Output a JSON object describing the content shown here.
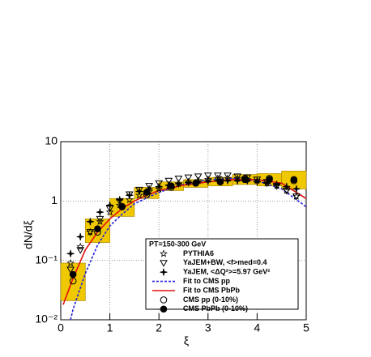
{
  "chart_data": {
    "type": "line",
    "x_label": "ξ",
    "y_label": "dN/dξ",
    "xlim": [
      0,
      5
    ],
    "xticks": [
      0,
      1,
      2,
      3,
      4,
      5
    ],
    "ylim": [
      0.01,
      10
    ],
    "log_y": true,
    "yticks": [
      {
        "value": 0.01,
        "label": "10⁻²"
      },
      {
        "value": 0.1,
        "label": "10⁻¹"
      },
      1,
      10
    ],
    "grid": true,
    "legend_title": "PT=150-300 GeV",
    "series": [
      {
        "name": "PYTHIA6",
        "color": "#000000",
        "marker": "open-star",
        "x": [
          0.2,
          0.4,
          0.6,
          0.8,
          1.0,
          1.2,
          1.4,
          1.6,
          1.8,
          2.0,
          2.2,
          2.4,
          2.6,
          2.8,
          3.0,
          3.2,
          3.4,
          3.6,
          3.8,
          4.0,
          4.2,
          4.4,
          4.6,
          4.8
        ],
        "values": [
          0.09,
          0.17,
          0.3,
          0.45,
          0.65,
          0.85,
          1.05,
          1.25,
          1.45,
          1.6,
          1.8,
          1.95,
          2.1,
          2.2,
          2.3,
          2.4,
          2.4,
          2.4,
          2.3,
          2.2,
          2.0,
          1.8,
          1.5,
          1.2
        ]
      },
      {
        "name": "YaJEM+BW, <f>med=0.4",
        "color": "#000000",
        "marker": "open-triangle-down",
        "x": [
          0.2,
          0.4,
          0.6,
          0.8,
          1.0,
          1.2,
          1.4,
          1.6,
          1.8,
          2.0,
          2.2,
          2.4,
          2.6,
          2.8,
          3.0,
          3.2,
          3.4,
          3.6,
          3.8,
          4.0,
          4.2,
          4.4,
          4.6,
          4.8
        ],
        "values": [
          0.07,
          0.15,
          0.3,
          0.5,
          0.75,
          1.0,
          1.3,
          1.55,
          1.8,
          2.0,
          2.2,
          2.4,
          2.5,
          2.6,
          2.7,
          2.7,
          2.7,
          2.6,
          2.5,
          2.3,
          2.1,
          1.8,
          1.5,
          1.2
        ]
      },
      {
        "name": "YaJEM, <ΔQ²>=5.97 GeV²",
        "color": "#000000",
        "marker": "cross",
        "x": [
          0.2,
          0.4,
          0.6,
          0.8,
          1.0,
          1.2,
          1.4,
          1.6,
          1.8,
          2.0,
          2.2,
          2.4,
          2.6,
          2.8,
          3.0,
          3.2,
          3.4,
          3.6,
          3.8,
          4.0,
          4.2,
          4.4,
          4.6,
          4.8
        ],
        "values": [
          0.13,
          0.25,
          0.45,
          0.65,
          0.85,
          1.05,
          1.25,
          1.45,
          1.6,
          1.75,
          1.85,
          1.95,
          2.05,
          2.1,
          2.15,
          2.2,
          2.2,
          2.2,
          2.2,
          2.1,
          2.0,
          1.9,
          1.75,
          1.6
        ]
      },
      {
        "name": "Fit to CMS pp",
        "color": "#1f1fdd",
        "marker": "dashed-line",
        "x": [
          0.2,
          0.25,
          0.5,
          0.75,
          1,
          1.25,
          1.5,
          2,
          2.5,
          3,
          3.5,
          4,
          4.5,
          5
        ],
        "values": [
          0.01,
          0.015,
          0.06,
          0.18,
          0.38,
          0.6,
          0.9,
          1.4,
          1.9,
          2.3,
          2.4,
          2.2,
          1.6,
          0.8
        ]
      },
      {
        "name": "Fit to CMS PbPb",
        "color": "#e01010",
        "marker": "solid-line",
        "x": [
          0.05,
          0.25,
          0.5,
          0.75,
          1,
          1.25,
          1.5,
          1.75,
          2,
          2.5,
          3,
          3.5,
          4,
          4.5,
          5
        ],
        "values": [
          0.018,
          0.05,
          0.15,
          0.3,
          0.5,
          0.75,
          1.0,
          1.25,
          1.5,
          1.85,
          2.1,
          2.3,
          2.3,
          2.0,
          1.1
        ]
      },
      {
        "name": "CMS pp (0-10%)",
        "color": "#000000",
        "marker": "open-circle",
        "x": [
          0.25,
          0.75,
          1.25,
          1.75,
          2.25,
          2.75,
          3.25,
          3.75,
          4.25,
          4.75
        ],
        "values": [
          0.045,
          0.3,
          0.8,
          1.3,
          1.7,
          2.0,
          2.3,
          2.4,
          2.4,
          2.2
        ]
      },
      {
        "name": "CMS PbPb (0-10%)",
        "color": "#000000",
        "marker": "filled-circle",
        "sys_color": "#f0c800",
        "x": [
          0.25,
          0.75,
          1.25,
          1.75,
          2.25,
          2.75,
          3.25,
          3.75,
          4.25,
          4.75
        ],
        "values": [
          0.058,
          0.34,
          0.81,
          1.4,
          1.8,
          2.0,
          2.1,
          2.3,
          2.3,
          2.3
        ],
        "sys_low": [
          0.021,
          0.2,
          0.55,
          1.1,
          1.5,
          1.7,
          1.8,
          1.9,
          1.8,
          1.6
        ],
        "sys_high": [
          0.09,
          0.5,
          1.1,
          1.7,
          2.1,
          2.3,
          2.5,
          2.8,
          2.9,
          3.2
        ]
      }
    ]
  }
}
